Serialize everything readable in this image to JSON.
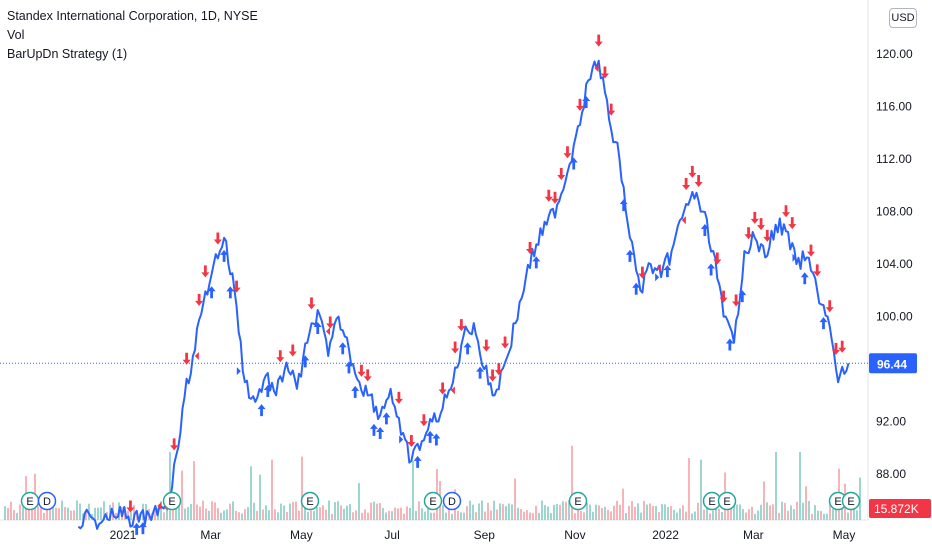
{
  "legend": {
    "symbol": "Standex International Corporation, 1D, NYSE",
    "volume": "Vol",
    "strategy": "BarUpDn Strategy (1)"
  },
  "currency": "USD",
  "colors": {
    "price_line": "#2962ff",
    "buy_arrow": "#2962ff",
    "sell_arrow": "#f23645",
    "volume_up": "#8ccfc5",
    "volume_down": "#f5a7ac",
    "last_price": "#2962ff",
    "volume_tag": "#f23645"
  },
  "chart_data": {
    "type": "line",
    "title": "Standex International Corporation, 1D, NYSE",
    "y_axis": {
      "ticks": [
        "88.00",
        "92.00",
        "96.00",
        "100.00",
        "104.00",
        "108.00",
        "112.00",
        "116.00",
        "120.00"
      ],
      "range": [
        84.5,
        122.6
      ]
    },
    "x_axis": {
      "ticks": [
        "2021",
        "Mar",
        "May",
        "Jul",
        "Sep",
        "Nov",
        "2022",
        "Mar",
        "May"
      ]
    },
    "last_price": "96.44",
    "last_volume": "15.872K",
    "series": [
      {
        "name": "Price",
        "x": [
          "2020-12-02",
          "2020-12-09",
          "2020-12-16",
          "2020-12-23",
          "2020-12-30",
          "2021-01-06",
          "2021-01-13",
          "2021-01-20",
          "2021-01-27",
          "2021-02-03",
          "2021-02-10",
          "2021-02-17",
          "2021-02-24",
          "2021-03-03",
          "2021-03-10",
          "2021-03-17",
          "2021-03-24",
          "2021-03-31",
          "2021-04-07",
          "2021-04-14",
          "2021-04-21",
          "2021-04-28",
          "2021-05-05",
          "2021-05-12",
          "2021-05-19",
          "2021-05-26",
          "2021-06-02",
          "2021-06-09",
          "2021-06-16",
          "2021-06-23",
          "2021-06-30",
          "2021-07-07",
          "2021-07-14",
          "2021-07-21",
          "2021-07-28",
          "2021-08-04",
          "2021-08-11",
          "2021-08-18",
          "2021-08-25",
          "2021-09-01",
          "2021-09-08",
          "2021-09-15",
          "2021-09-22",
          "2021-09-29",
          "2021-10-06",
          "2021-10-13",
          "2021-10-20",
          "2021-10-27",
          "2021-11-03",
          "2021-11-10",
          "2021-11-17",
          "2021-11-24",
          "2021-12-01",
          "2021-12-08",
          "2021-12-15",
          "2021-12-22",
          "2021-12-29",
          "2022-01-05",
          "2022-01-12",
          "2022-01-19",
          "2022-01-26",
          "2022-02-02",
          "2022-02-09",
          "2022-02-16",
          "2022-02-23",
          "2022-03-02",
          "2022-03-09",
          "2022-03-16",
          "2022-03-23",
          "2022-03-30",
          "2022-04-06",
          "2022-04-13",
          "2022-04-20",
          "2022-04-27",
          "2022-05-04"
        ],
        "values": [
          84.0,
          85.0,
          84.2,
          84.5,
          85.5,
          84.0,
          85.0,
          84.5,
          85.5,
          87.0,
          93.0,
          97.0,
          101.0,
          104.0,
          106.0,
          102.0,
          95.0,
          93.5,
          95.5,
          94.0,
          96.5,
          94.5,
          98.0,
          100.5,
          97.0,
          100.0,
          97.5,
          95.0,
          94.0,
          92.5,
          94.5,
          91.0,
          89.0,
          90.5,
          92.0,
          93.0,
          95.0,
          98.5,
          99.5,
          96.0,
          94.0,
          96.5,
          99.5,
          103.0,
          105.5,
          107.0,
          108.5,
          111.0,
          114.5,
          118.0,
          119.5,
          115.0,
          112.0,
          106.0,
          102.0,
          104.0,
          103.0,
          105.0,
          107.5,
          109.5,
          108.0,
          105.0,
          100.0,
          98.0,
          105.0,
          106.0,
          104.5,
          107.0,
          106.5,
          104.0,
          104.5,
          102.0,
          100.0,
          95.0,
          96.44
        ]
      }
    ],
    "buy_signal_count": 62,
    "sell_signal_count": 58,
    "events": [
      "E",
      "D",
      "E",
      "E",
      "E",
      "D",
      "E",
      "E",
      "E",
      "E",
      "E"
    ]
  }
}
